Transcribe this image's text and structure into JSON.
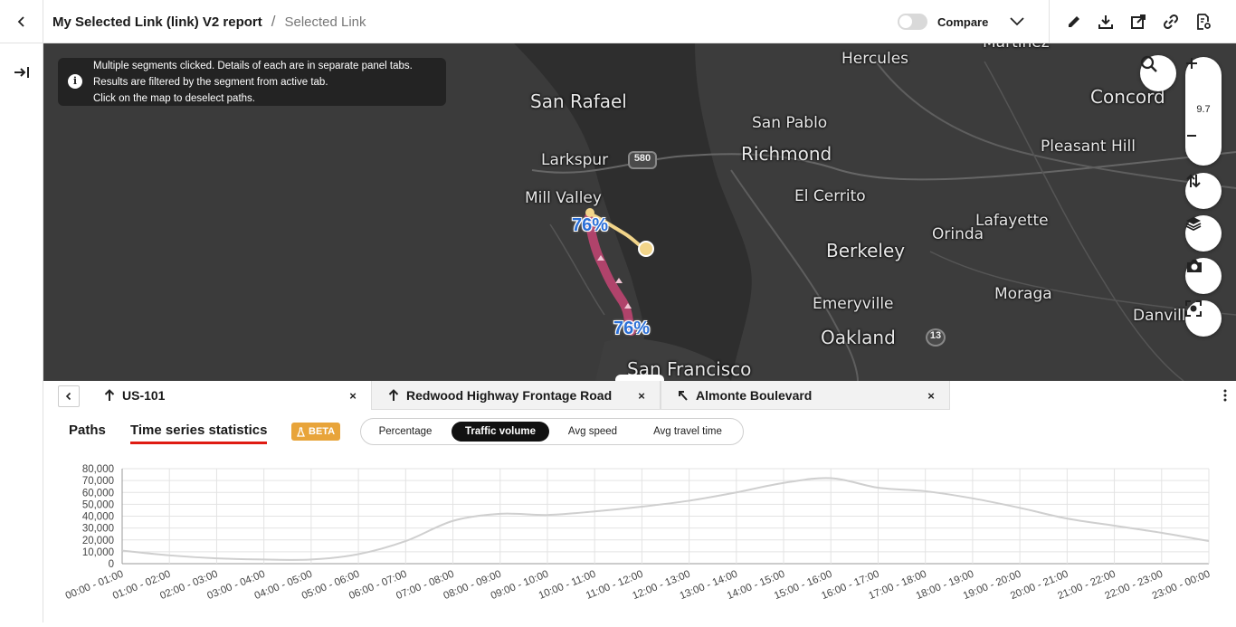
{
  "header": {
    "report_title": "My Selected Link (link) V2 report",
    "separator": "/",
    "subtitle": "Selected Link",
    "compare_label": "Compare"
  },
  "info_box": {
    "line1": "Multiple segments clicked. Details of each are in separate panel tabs.",
    "line2": "Results are filtered by the segment from active tab.",
    "line3": "Click on the map to deselect paths."
  },
  "map": {
    "zoom_level": "9.7",
    "labels": {
      "hercules": "Hercules",
      "martinez": "Martinez",
      "san_rafael": "San Rafael",
      "concord": "Concord",
      "san_pablo": "San Pablo",
      "richmond": "Richmond",
      "pleasant_hill": "Pleasant Hill",
      "larkspur": "Larkspur",
      "mill_valley": "Mill Valley",
      "el_cerrito": "El Cerrito",
      "lafayette": "Lafayette",
      "berkeley": "Berkeley",
      "orinda": "Orinda",
      "moraga": "Moraga",
      "emeryville": "Emeryville",
      "danville": "Danville",
      "oakland": "Oakland",
      "san_francisco": "San Francisco"
    },
    "shields": {
      "i580": "580",
      "r13": "13"
    },
    "pct_top": "76%",
    "pct_bottom": "76%",
    "colors": {
      "route_main": "#b0436b",
      "route_alt": "#f2d58a",
      "pct_text": "#2b6fd6"
    }
  },
  "segment_tabs": [
    {
      "label": "US-101",
      "close": "×"
    },
    {
      "label": "Redwood Highway Frontage Road",
      "close": "×"
    },
    {
      "label": "Almonte Boulevard",
      "close": "×"
    }
  ],
  "subtabs": {
    "paths": "Paths",
    "time_series": "Time series statistics",
    "beta": "BETA"
  },
  "metric_options": {
    "percentage": "Percentage",
    "traffic_volume": "Traffic volume",
    "avg_speed": "Avg speed",
    "avg_travel_time": "Avg travel time",
    "selected": "Traffic volume"
  },
  "chart_data": {
    "type": "line",
    "categories": [
      "00:00 - 01:00",
      "01:00 - 02:00",
      "02:00 - 03:00",
      "03:00 - 04:00",
      "04:00 - 05:00",
      "05:00 - 06:00",
      "06:00 - 07:00",
      "07:00 - 08:00",
      "08:00 - 09:00",
      "09:00 - 10:00",
      "10:00 - 11:00",
      "11:00 - 12:00",
      "12:00 - 13:00",
      "13:00 - 14:00",
      "14:00 - 15:00",
      "15:00 - 16:00",
      "16:00 - 17:00",
      "17:00 - 18:00",
      "18:00 - 19:00",
      "19:00 - 20:00",
      "20:00 - 21:00",
      "21:00 - 22:00",
      "22:00 - 23:00",
      "23:00 - 00:00"
    ],
    "values": [
      11000,
      7000,
      4500,
      3500,
      3500,
      8000,
      19000,
      36000,
      42000,
      41000,
      44000,
      48000,
      53000,
      60000,
      68000,
      72000,
      64000,
      61000,
      55000,
      47000,
      38000,
      32000,
      26000,
      19000
    ],
    "ylim": [
      0,
      80000
    ],
    "yticks": [
      "0",
      "10,000",
      "20,000",
      "30,000",
      "40,000",
      "50,000",
      "60,000",
      "70,000",
      "80,000"
    ],
    "grid": true,
    "line_color": "#cfcfcf"
  }
}
